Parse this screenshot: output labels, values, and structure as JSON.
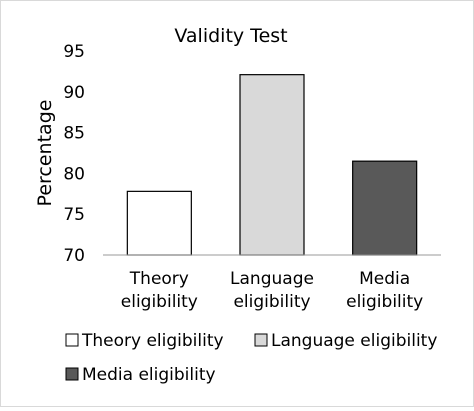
{
  "chart_data": {
    "type": "bar",
    "title": "Validity Test",
    "xlabel": "",
    "ylabel": "Percentage",
    "ylim": [
      70,
      95
    ],
    "yticks": [
      70,
      75,
      80,
      85,
      90,
      95
    ],
    "grid": false,
    "legend_position": "bottom",
    "categories": [
      "Theory eligibility",
      "Language eligibility",
      "Media eligibility"
    ],
    "category_labels": [
      [
        "Theory",
        "eligibility"
      ],
      [
        "Language",
        "eligibility"
      ],
      [
        "Media",
        "eligibility"
      ]
    ],
    "values": [
      77.8,
      92.1,
      81.5
    ],
    "colors": [
      "#ffffff",
      "#d9d9d9",
      "#595959"
    ],
    "legend": [
      "Theory eligibility",
      "Language eligibility",
      "Media eligibility"
    ]
  }
}
